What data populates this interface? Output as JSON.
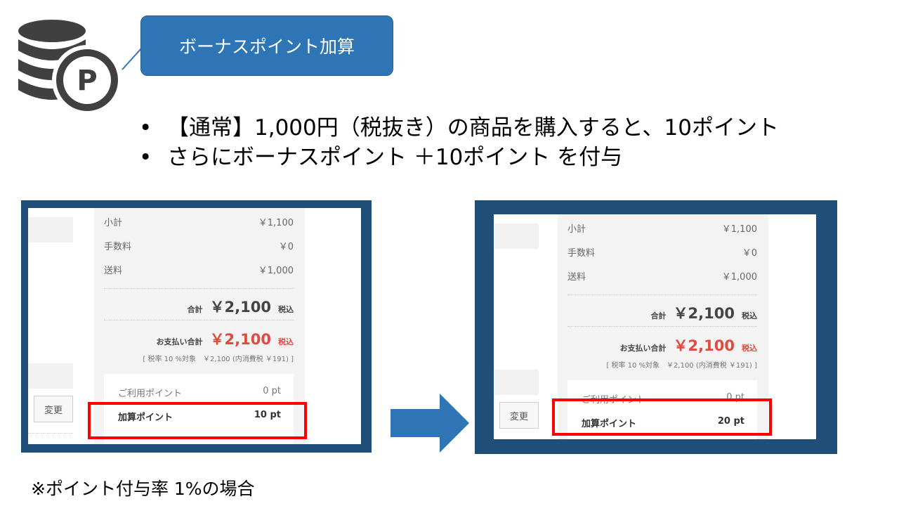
{
  "callout": {
    "label": "ボーナスポイント加算"
  },
  "bullets": [
    "【通常】1,000円（税抜き）の商品を購入すると、10ポイント",
    "さらにボーナスポイント ＋10ポイント を付与"
  ],
  "bullet_glyph": "•",
  "footnote": "※ポイント付与率 1%の場合",
  "icons": {
    "logo": "coin-stack-p-icon",
    "arrow": "right-arrow-icon"
  },
  "colors": {
    "accent": "#2e75b6",
    "frame": "#1f4e79",
    "highlight": "#ff0000",
    "price_red": "#e04a3f"
  },
  "panels": [
    {
      "change_button": "変更",
      "subtotal_label": "小計",
      "subtotal": "￥1,100",
      "fee_label": "手数料",
      "fee": "￥0",
      "shipping_label": "送料",
      "shipping": "￥1,000",
      "total_label": "合計",
      "total": "￥2,100",
      "tax_in": "税込",
      "pay_label": "お支払い合計",
      "pay_total": "￥2,100",
      "pay_tax_in": "税込",
      "tax_note": "[ 税率 10 %対象　￥2,100 (内消費税 ￥191) ]",
      "used_points_label": "ご利用ポイント",
      "used_points": "0 pt",
      "added_points_label": "加算ポイント",
      "added_points": "10 pt"
    },
    {
      "change_button": "変更",
      "subtotal_label": "小計",
      "subtotal": "￥1,100",
      "fee_label": "手数料",
      "fee": "￥0",
      "shipping_label": "送料",
      "shipping": "￥1,000",
      "total_label": "合計",
      "total": "￥2,100",
      "tax_in": "税込",
      "pay_label": "お支払い合計",
      "pay_total": "￥2,100",
      "pay_tax_in": "税込",
      "tax_note": "[ 税率 10 %対象　￥2,100 (内消費税 ￥191) ]",
      "used_points_label": "ご利用ポイント",
      "used_points": "0 pt",
      "added_points_label": "加算ポイント",
      "added_points": "20 pt"
    }
  ]
}
